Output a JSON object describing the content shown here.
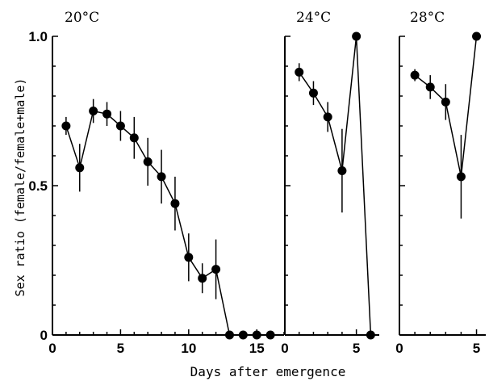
{
  "chart_data": {
    "type": "line",
    "ylabel": "Sex ratio (female/female+male)",
    "xlabel": "Days after emergence",
    "ylim": [
      0,
      1.0
    ],
    "y_ticks": [
      "0",
      "0.5",
      "1.0"
    ],
    "marker_color": "#000000",
    "panels": [
      {
        "title": "20°C",
        "xlim": [
          0,
          17
        ],
        "x_ticks": [
          "0",
          "5",
          "10",
          "15"
        ],
        "x_tick_values": [
          0,
          5,
          10,
          15
        ],
        "x": [
          1,
          2,
          3,
          4,
          5,
          6,
          7,
          8,
          9,
          10,
          11,
          12,
          13,
          14,
          15,
          16
        ],
        "y": [
          0.7,
          0.56,
          0.75,
          0.74,
          0.7,
          0.66,
          0.58,
          0.53,
          0.44,
          0.26,
          0.19,
          0.22,
          0.0,
          0.0,
          0.0,
          0.0
        ],
        "err": [
          0.03,
          0.08,
          0.04,
          0.04,
          0.05,
          0.07,
          0.08,
          0.09,
          0.09,
          0.08,
          0.05,
          0.1,
          0,
          0,
          0,
          0
        ]
      },
      {
        "title": "24°C",
        "xlim": [
          0,
          6.6
        ],
        "x_ticks": [
          "0",
          "5"
        ],
        "x_tick_values": [
          0,
          5
        ],
        "x": [
          1,
          2,
          3,
          4,
          5,
          6
        ],
        "y": [
          0.88,
          0.81,
          0.73,
          0.55,
          1.0,
          0.0
        ],
        "err": [
          0.03,
          0.04,
          0.05,
          0.14,
          0,
          0
        ]
      },
      {
        "title": "28°C",
        "xlim": [
          0,
          5.6
        ],
        "x_ticks": [
          "0",
          "5"
        ],
        "x_tick_values": [
          0,
          5
        ],
        "x": [
          1,
          2,
          3,
          4,
          5
        ],
        "y": [
          0.87,
          0.83,
          0.78,
          0.53,
          1.0
        ],
        "err": [
          0.02,
          0.04,
          0.06,
          0.14,
          0
        ]
      }
    ]
  }
}
